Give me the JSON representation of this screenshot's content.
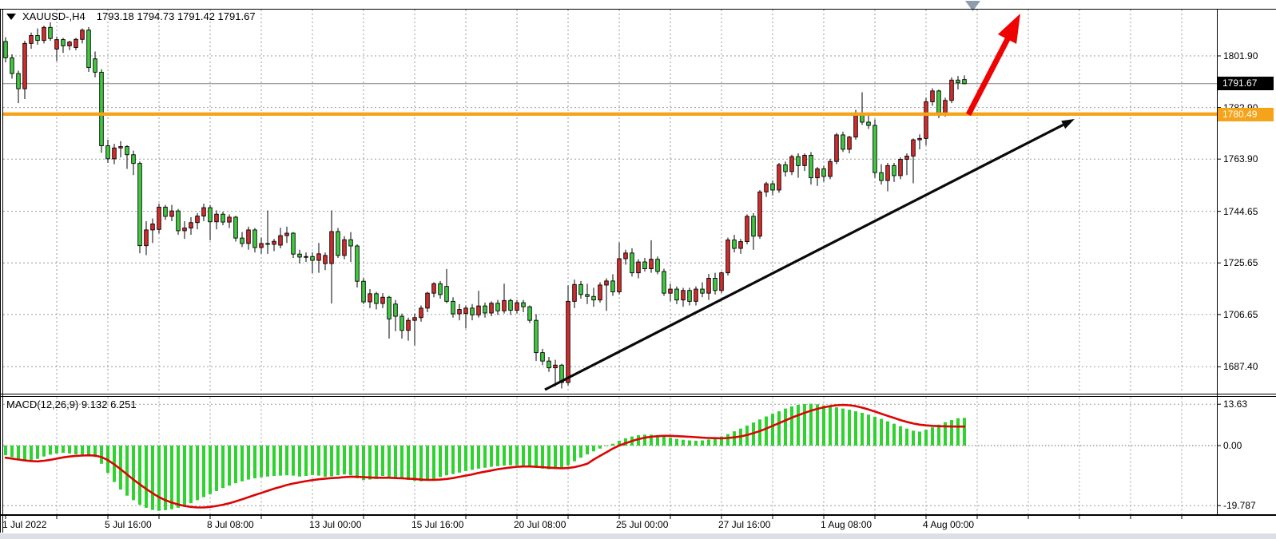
{
  "header": {
    "symbol_timeframe": "XAUUSD-,H4",
    "ohlc": "1793.18 1794.73 1791.42 1791.67",
    "dropdown_icon": "black-down-triangle"
  },
  "macd_panel": {
    "label_full": "MACD(12,26,9) 9.132 6.251",
    "indicator": "MACD",
    "params": "12,26,9",
    "main_value": "9.132",
    "signal_value": "6.251"
  },
  "price_tags": {
    "bid_tag": "1791.67",
    "hline_tag": "1780.49"
  },
  "colors": {
    "background": "#ffffff",
    "candle_up": "#d42b2b",
    "candle_down": "#3ecb3e",
    "candle_outline": "#000000",
    "macd_histogram": "#2ed32e",
    "macd_signal": "#dc0404",
    "horizontal_line": "#f5a318",
    "bid_line": "#808080",
    "grid": "#9b9b9b",
    "trend_arrow": "#0a0a0a",
    "red_arrow": "#ee0202",
    "shift_marker": "#8d9dab",
    "bottom_strip": "#dce0e5"
  },
  "chart_data": {
    "type": "candlestick",
    "title": "XAUUSD- H4",
    "current_bar": {
      "open": 1793.18,
      "high": 1794.73,
      "low": 1791.42,
      "close": 1791.67
    },
    "color_convention": "bullish candles red, bearish candles lime",
    "bid_price": 1791.67,
    "horizontal_line_price": 1780.49,
    "y_axis_ticks": [
      {
        "text": "1801.90",
        "value": 1801.9
      },
      {
        "text": "1782.90",
        "value": 1782.9
      },
      {
        "text": "1763.90",
        "value": 1763.9
      },
      {
        "text": "1744.65",
        "value": 1744.65
      },
      {
        "text": "1725.65",
        "value": 1725.65
      },
      {
        "text": "1706.65",
        "value": 1706.65
      },
      {
        "text": "1687.40",
        "value": 1687.4
      }
    ],
    "x_axis_labels": [
      {
        "text": "1 Jul 2022",
        "bar": 0
      },
      {
        "text": "5 Jul 16:00",
        "bar": 16
      },
      {
        "text": "8 Jul 08:00",
        "bar": 32
      },
      {
        "text": "13 Jul 00:00",
        "bar": 48
      },
      {
        "text": "15 Jul 16:00",
        "bar": 64
      },
      {
        "text": "20 Jul 08:00",
        "bar": 80
      },
      {
        "text": "25 Jul 00:00",
        "bar": 96
      },
      {
        "text": "27 Jul 16:00",
        "bar": 112
      },
      {
        "text": "1 Aug 08:00",
        "bar": 128
      },
      {
        "text": "4 Aug 00:00",
        "bar": 144
      }
    ],
    "candles": [
      [
        1807.2,
        1808.8,
        1799.5,
        1801.2
      ],
      [
        1801.2,
        1802.5,
        1793.5,
        1795.4
      ],
      [
        1795.4,
        1796.5,
        1784.5,
        1789.8
      ],
      [
        1789.8,
        1807.5,
        1786.0,
        1806.5
      ],
      [
        1806.5,
        1810.5,
        1804.5,
        1809.4
      ],
      [
        1809.4,
        1812.0,
        1806.0,
        1807.6
      ],
      [
        1807.6,
        1813.0,
        1806.5,
        1812.4
      ],
      [
        1812.4,
        1814.3,
        1807.5,
        1808.3
      ],
      [
        1804.4,
        1809.0,
        1800.0,
        1807.9
      ],
      [
        1807.9,
        1808.5,
        1803.0,
        1805.6
      ],
      [
        1805.6,
        1807.5,
        1804.0,
        1807.0
      ],
      [
        1805.0,
        1808.5,
        1804.0,
        1808.0
      ],
      [
        1808.0,
        1812.0,
        1806.5,
        1811.4
      ],
      [
        1811.4,
        1812.5,
        1796.0,
        1797.6
      ],
      [
        1800.8,
        1803.5,
        1794.0,
        1795.9
      ],
      [
        1795.9,
        1797.0,
        1766.2,
        1768.8
      ],
      [
        1768.8,
        1771.0,
        1762.5,
        1764.0
      ],
      [
        1764.0,
        1769.5,
        1762.0,
        1768.0
      ],
      [
        1768.0,
        1770.5,
        1764.5,
        1768.5
      ],
      [
        1768.5,
        1769.0,
        1760.3,
        1765.5
      ],
      [
        1765.5,
        1767.0,
        1758.0,
        1762.3
      ],
      [
        1762.3,
        1763.0,
        1729.2,
        1732.0
      ],
      [
        1732.0,
        1741.0,
        1728.5,
        1737.8
      ],
      [
        1737.8,
        1742.0,
        1733.0,
        1740.0
      ],
      [
        1738.0,
        1747.5,
        1736.5,
        1746.2
      ],
      [
        1746.2,
        1747.0,
        1741.5,
        1742.8
      ],
      [
        1742.8,
        1747.0,
        1741.0,
        1744.8
      ],
      [
        1744.8,
        1745.5,
        1736.0,
        1737.5
      ],
      [
        1737.5,
        1741.0,
        1734.5,
        1738.5
      ],
      [
        1738.5,
        1742.5,
        1736.0,
        1740.5
      ],
      [
        1740.5,
        1744.0,
        1738.0,
        1742.9
      ],
      [
        1742.9,
        1747.5,
        1741.0,
        1746.0
      ],
      [
        1746.0,
        1747.0,
        1734.0,
        1740.8
      ],
      [
        1740.8,
        1745.0,
        1738.0,
        1743.6
      ],
      [
        1743.6,
        1744.5,
        1739.5,
        1740.7
      ],
      [
        1740.7,
        1743.5,
        1738.5,
        1742.5
      ],
      [
        1742.5,
        1743.0,
        1733.5,
        1734.8
      ],
      [
        1734.8,
        1737.0,
        1731.5,
        1732.8
      ],
      [
        1732.8,
        1739.0,
        1730.5,
        1737.8
      ],
      [
        1737.8,
        1738.5,
        1729.5,
        1731.3
      ],
      [
        1731.3,
        1735.0,
        1729.0,
        1732.8
      ],
      [
        1732.8,
        1745.0,
        1729.0,
        1732.5
      ],
      [
        1732.5,
        1734.5,
        1730.0,
        1733.6
      ],
      [
        1732.2,
        1738.6,
        1731.0,
        1735.7
      ],
      [
        1735.7,
        1739.0,
        1733.0,
        1736.6
      ],
      [
        1736.6,
        1737.0,
        1727.5,
        1728.9
      ],
      [
        1728.9,
        1730.5,
        1725.4,
        1727.8
      ],
      [
        1727.8,
        1729.5,
        1726.0,
        1728.0
      ],
      [
        1728.0,
        1729.6,
        1721.9,
        1726.6
      ],
      [
        1726.6,
        1733.0,
        1722.0,
        1729.0
      ],
      [
        1725.4,
        1729.5,
        1723.0,
        1728.4
      ],
      [
        1725.4,
        1745.0,
        1710.7,
        1737.2
      ],
      [
        1737.2,
        1738.5,
        1727.5,
        1728.4
      ],
      [
        1728.4,
        1735.5,
        1727.0,
        1734.2
      ],
      [
        1734.2,
        1737.0,
        1726.0,
        1731.9
      ],
      [
        1731.9,
        1732.5,
        1716.6,
        1718.9
      ],
      [
        1718.9,
        1720.1,
        1710.5,
        1711.3
      ],
      [
        1711.3,
        1716.0,
        1709.0,
        1714.3
      ],
      [
        1714.3,
        1715.0,
        1708.5,
        1710.7
      ],
      [
        1710.7,
        1714.5,
        1709.0,
        1713.0
      ],
      [
        1713.0,
        1713.5,
        1697.8,
        1705.0
      ],
      [
        1710.5,
        1712.0,
        1700.5,
        1706.0
      ],
      [
        1706.0,
        1707.0,
        1697.8,
        1700.8
      ],
      [
        1700.8,
        1705.5,
        1697.0,
        1704.5
      ],
      [
        1704.5,
        1707.0,
        1695.3,
        1705.5
      ],
      [
        1705.5,
        1710.0,
        1704.0,
        1709.0
      ],
      [
        1709.0,
        1715.0,
        1707.5,
        1714.5
      ],
      [
        1714.5,
        1718.5,
        1713.0,
        1718.0
      ],
      [
        1718.0,
        1719.0,
        1712.5,
        1714.0
      ],
      [
        1717.0,
        1723.4,
        1710.8,
        1711.5
      ],
      [
        1711.5,
        1713.0,
        1705.5,
        1706.9
      ],
      [
        1706.9,
        1710.5,
        1704.5,
        1708.5
      ],
      [
        1707.0,
        1710.0,
        1701.5,
        1709.0
      ],
      [
        1709.0,
        1710.5,
        1704.5,
        1706.5
      ],
      [
        1706.5,
        1715.4,
        1705.5,
        1709.8
      ],
      [
        1709.8,
        1711.0,
        1705.5,
        1707.2
      ],
      [
        1707.2,
        1711.5,
        1706.0,
        1710.8
      ],
      [
        1710.8,
        1712.0,
        1706.5,
        1708.0
      ],
      [
        1708.0,
        1718.0,
        1707.0,
        1711.8
      ],
      [
        1711.8,
        1712.5,
        1706.5,
        1708.2
      ],
      [
        1708.2,
        1712.0,
        1707.0,
        1711.0
      ],
      [
        1711.0,
        1712.0,
        1707.5,
        1709.5
      ],
      [
        1709.5,
        1710.0,
        1703.5,
        1704.5
      ],
      [
        1704.5,
        1706.8,
        1689.5,
        1692.6
      ],
      [
        1692.6,
        1694.0,
        1688.0,
        1689.5
      ],
      [
        1689.5,
        1691.0,
        1685.5,
        1687.0
      ],
      [
        1687.0,
        1690.0,
        1680.2,
        1688.0
      ],
      [
        1688.0,
        1688.5,
        1679.4,
        1681.6
      ],
      [
        1681.6,
        1717.4,
        1680.5,
        1711.5
      ],
      [
        1711.5,
        1719.5,
        1709.0,
        1717.7
      ],
      [
        1717.7,
        1719.0,
        1712.5,
        1714.0
      ],
      [
        1714.0,
        1718.0,
        1710.5,
        1713.3
      ],
      [
        1713.3,
        1716.5,
        1709.5,
        1712.0
      ],
      [
        1712.0,
        1718.5,
        1711.0,
        1717.5
      ],
      [
        1717.5,
        1720.0,
        1708.0,
        1719.0
      ],
      [
        1719.0,
        1721.5,
        1713.5,
        1715.0
      ],
      [
        1715.0,
        1733.2,
        1714.0,
        1727.2
      ],
      [
        1727.2,
        1730.5,
        1725.0,
        1729.3
      ],
      [
        1729.3,
        1731.0,
        1720.6,
        1722.0
      ],
      [
        1722.0,
        1727.0,
        1720.0,
        1726.0
      ],
      [
        1726.0,
        1727.5,
        1722.5,
        1723.5
      ],
      [
        1723.5,
        1734.0,
        1722.0,
        1727.0
      ],
      [
        1727.0,
        1728.0,
        1721.5,
        1722.5
      ],
      [
        1722.5,
        1723.5,
        1713.5,
        1714.5
      ],
      [
        1714.5,
        1718.0,
        1711.5,
        1716.0
      ],
      [
        1716.0,
        1717.0,
        1710.5,
        1712.0
      ],
      [
        1712.0,
        1716.5,
        1709.5,
        1715.5
      ],
      [
        1715.5,
        1716.5,
        1710.0,
        1711.5
      ],
      [
        1711.5,
        1717.0,
        1710.0,
        1716.0
      ],
      [
        1716.0,
        1718.5,
        1713.0,
        1714.5
      ],
      [
        1714.5,
        1721.6,
        1712.0,
        1720.0
      ],
      [
        1720.0,
        1722.0,
        1714.0,
        1715.5
      ],
      [
        1715.5,
        1722.5,
        1714.5,
        1722.0
      ],
      [
        1722.0,
        1735.0,
        1721.0,
        1734.1
      ],
      [
        1734.1,
        1736.0,
        1729.5,
        1731.0
      ],
      [
        1731.0,
        1734.5,
        1729.0,
        1733.5
      ],
      [
        1733.5,
        1743.5,
        1732.5,
        1742.8
      ],
      [
        1742.8,
        1744.0,
        1730.5,
        1735.5
      ],
      [
        1735.5,
        1752.5,
        1734.5,
        1751.8
      ],
      [
        1751.8,
        1755.5,
        1750.0,
        1754.8
      ],
      [
        1754.8,
        1756.0,
        1750.5,
        1752.5
      ],
      [
        1752.5,
        1762.5,
        1751.5,
        1761.8
      ],
      [
        1761.8,
        1763.0,
        1757.5,
        1759.3
      ],
      [
        1759.3,
        1765.5,
        1758.0,
        1764.8
      ],
      [
        1764.8,
        1766.0,
        1757.0,
        1761.5
      ],
      [
        1761.5,
        1766.0,
        1759.5,
        1765.3
      ],
      [
        1765.3,
        1766.5,
        1754.5,
        1757.0
      ],
      [
        1757.0,
        1761.0,
        1754.0,
        1760.3
      ],
      [
        1760.3,
        1761.5,
        1755.5,
        1757.5
      ],
      [
        1757.5,
        1764.0,
        1756.5,
        1763.0
      ],
      [
        1763.0,
        1773.5,
        1762.0,
        1772.8
      ],
      [
        1772.8,
        1774.0,
        1766.5,
        1767.5
      ],
      [
        1767.5,
        1772.5,
        1766.0,
        1772.0
      ],
      [
        1772.0,
        1782.0,
        1771.0,
        1780.3
      ],
      [
        1780.3,
        1788.5,
        1776.5,
        1777.5
      ],
      [
        1777.5,
        1780.5,
        1775.0,
        1776.3
      ],
      [
        1776.3,
        1778.5,
        1757.0,
        1758.9
      ],
      [
        1758.9,
        1762.0,
        1754.5,
        1756.0
      ],
      [
        1756.0,
        1762.5,
        1752.0,
        1761.5
      ],
      [
        1761.5,
        1762.5,
        1755.5,
        1757.8
      ],
      [
        1757.8,
        1764.5,
        1756.5,
        1763.8
      ],
      [
        1763.8,
        1766.0,
        1758.0,
        1765.0
      ],
      [
        1765.0,
        1771.5,
        1755.0,
        1771.0
      ],
      [
        1771.0,
        1773.0,
        1767.5,
        1771.5
      ],
      [
        1771.5,
        1786.5,
        1769.0,
        1785.0
      ],
      [
        1785.0,
        1790.0,
        1783.5,
        1789.0
      ],
      [
        1789.0,
        1789.5,
        1779.0,
        1780.5
      ],
      [
        1780.5,
        1786.5,
        1779.5,
        1785.5
      ],
      [
        1785.5,
        1794.0,
        1784.5,
        1793.0
      ],
      [
        1793.0,
        1794.5,
        1789.5,
        1792.0
      ],
      [
        1793.18,
        1794.73,
        1791.42,
        1791.67
      ]
    ],
    "macd": {
      "y_ticks": [
        {
          "text": "13.63",
          "value": 13.63
        },
        {
          "text": "0.00",
          "value": 0
        },
        {
          "text": "-19.787",
          "value": -19.787
        }
      ],
      "last_main": 9.132,
      "last_signal": 6.251,
      "histogram": [
        -3.2,
        -3.8,
        -4.6,
        -5.2,
        -5.0,
        -4.4,
        -3.6,
        -3.0,
        -2.6,
        -2.4,
        -2.6,
        -2.9,
        -3.0,
        -3.2,
        -3.8,
        -6.0,
        -9.0,
        -12.0,
        -14.5,
        -16.5,
        -18.0,
        -19.5,
        -20.5,
        -21.2,
        -21.5,
        -21.3,
        -21.0,
        -20.5,
        -19.8,
        -19.0,
        -18.0,
        -17.0,
        -16.0,
        -15.0,
        -14.0,
        -13.2,
        -12.4,
        -11.8,
        -11.2,
        -10.8,
        -10.4,
        -10.2,
        -10.0,
        -9.9,
        -9.8,
        -9.9,
        -10.2,
        -10.0,
        -9.7,
        -9.9,
        -10.3,
        -10.1,
        -9.8,
        -9.5,
        -9.8,
        -10.8,
        -11.4,
        -11.2,
        -11.0,
        -10.0,
        -10.3,
        -10.6,
        -11.0,
        -11.3,
        -11.6,
        -11.8,
        -11.5,
        -11.0,
        -10.4,
        -9.8,
        -9.4,
        -8.9,
        -8.4,
        -8.0,
        -7.6,
        -7.3,
        -7.0,
        -6.8,
        -6.6,
        -6.5,
        -6.5,
        -6.6,
        -6.9,
        -7.3,
        -7.6,
        -7.8,
        -7.7,
        -7.5,
        -6.5,
        -5.2,
        -4.0,
        -2.9,
        -1.9,
        -1.0,
        -0.2,
        0.6,
        1.6,
        2.4,
        3.0,
        3.4,
        3.6,
        3.6,
        3.4,
        3.0,
        2.6,
        2.2,
        1.9,
        1.7,
        1.6,
        1.7,
        2.0,
        2.4,
        3.0,
        3.8,
        4.7,
        5.6,
        6.6,
        7.6,
        8.6,
        9.6,
        10.5,
        11.3,
        12.2,
        12.9,
        13.4,
        13.7,
        13.8,
        13.6,
        13.2,
        12.9,
        12.6,
        12.2,
        11.8,
        11.3,
        10.8,
        10.2,
        9.5,
        8.8,
        8.0,
        7.2,
        6.4,
        5.6,
        4.9,
        4.6,
        5.2,
        6.0,
        6.9,
        7.7,
        8.4,
        9.0,
        9.132
      ],
      "signal": [
        -4.0,
        -4.3,
        -4.6,
        -4.9,
        -5.1,
        -5.2,
        -5.0,
        -4.7,
        -4.3,
        -3.9,
        -3.6,
        -3.4,
        -3.3,
        -3.2,
        -3.3,
        -3.8,
        -4.8,
        -6.2,
        -7.8,
        -9.5,
        -11.2,
        -12.8,
        -14.3,
        -15.7,
        -17.0,
        -18.0,
        -18.8,
        -19.4,
        -19.9,
        -20.2,
        -20.4,
        -20.4,
        -20.2,
        -19.9,
        -19.5,
        -19.0,
        -18.4,
        -17.7,
        -17.0,
        -16.3,
        -15.6,
        -14.9,
        -14.2,
        -13.6,
        -13.0,
        -12.5,
        -12.1,
        -11.7,
        -11.4,
        -11.1,
        -10.9,
        -10.7,
        -10.6,
        -10.4,
        -10.3,
        -10.3,
        -10.4,
        -10.5,
        -10.6,
        -10.6,
        -10.6,
        -10.7,
        -10.8,
        -10.9,
        -11.0,
        -11.2,
        -11.3,
        -11.3,
        -11.2,
        -11.0,
        -10.7,
        -10.3,
        -9.9,
        -9.5,
        -9.0,
        -8.6,
        -8.2,
        -7.8,
        -7.5,
        -7.2,
        -7.0,
        -6.9,
        -6.9,
        -7.0,
        -7.1,
        -7.3,
        -7.4,
        -7.5,
        -7.4,
        -7.1,
        -6.6,
        -6.0,
        -4.6,
        -3.4,
        -2.2,
        -1.0,
        0.0,
        0.8,
        1.5,
        2.1,
        2.6,
        2.9,
        3.1,
        3.2,
        3.2,
        3.1,
        3.0,
        2.9,
        2.75,
        2.6,
        2.5,
        2.45,
        2.4,
        2.5,
        2.7,
        3.0,
        3.5,
        4.1,
        4.8,
        5.6,
        6.5,
        7.4,
        8.3,
        9.2,
        10.0,
        10.8,
        11.5,
        12.1,
        12.6,
        13.0,
        13.3,
        13.4,
        13.3,
        13.0,
        12.5,
        11.9,
        11.2,
        10.5,
        9.8,
        9.1,
        8.4,
        7.8,
        7.3,
        6.9,
        6.65,
        6.5,
        6.4,
        6.33,
        6.28,
        6.26,
        6.251
      ]
    },
    "annotations": [
      {
        "type": "horizontal-line",
        "price": 1780.49,
        "color": "orange",
        "thickness": 4
      },
      {
        "type": "trend-line-arrow",
        "color": "black",
        "from_bar": 84,
        "from_price": 1679,
        "to_bar": 167,
        "to_price": 1778.5
      },
      {
        "type": "arrow",
        "color": "red",
        "direction": "up-right",
        "from_price": 1780.5,
        "to_price": 1817.5
      },
      {
        "type": "shift-marker-triangle",
        "color": "gray",
        "position": "top"
      }
    ]
  }
}
